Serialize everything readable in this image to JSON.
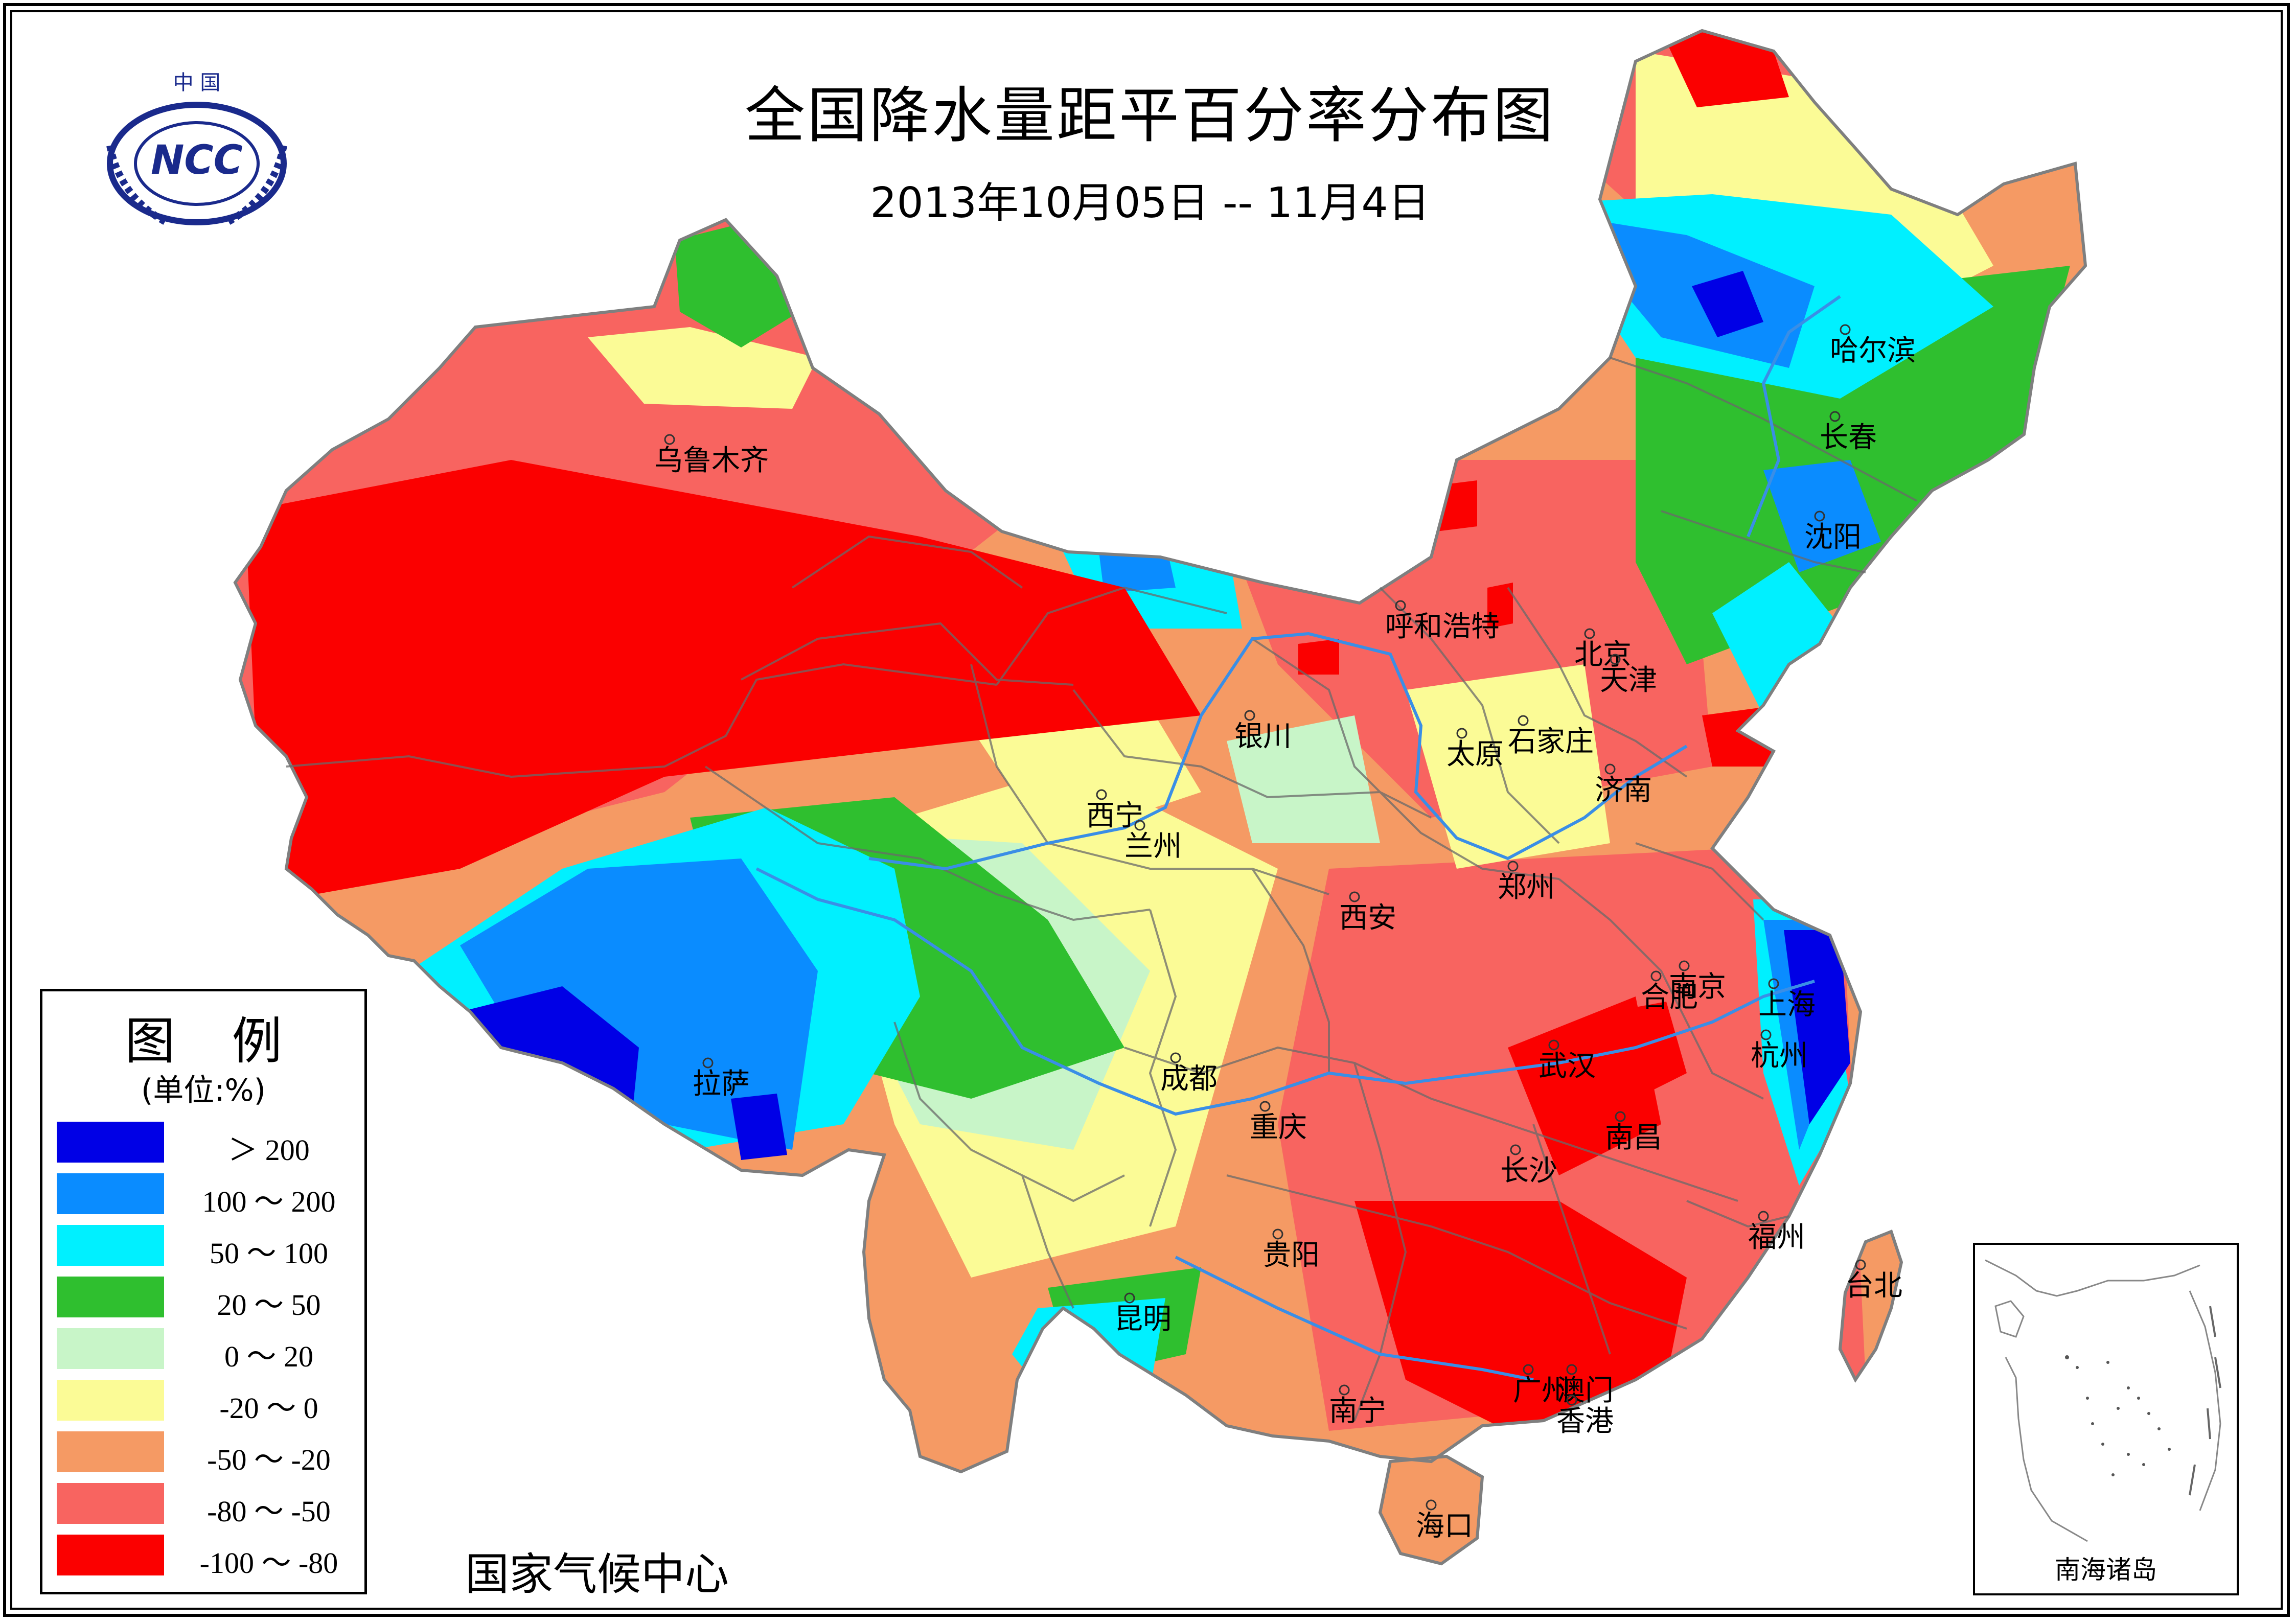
{
  "title": "全国降水量距平百分率分布图",
  "subtitle": "2013年10月05日 -- 11月4日",
  "organization": "国家气候中心",
  "logo": {
    "top_text": "中 国",
    "text": "NCC"
  },
  "legend": {
    "title": "图 例",
    "unit": "(单位:%)",
    "items": [
      {
        "label": "＞ 200",
        "color": "#0000e6"
      },
      {
        "label": "100 ～ 200",
        "color": "#0a8cff"
      },
      {
        "label": "50 ～ 100",
        "color": "#00f0ff"
      },
      {
        "label": "20 ～ 50",
        "color": "#2fbf2f"
      },
      {
        "label": "0 ～ 20",
        "color": "#c8f5c8"
      },
      {
        "label": "-20 ～ 0",
        "color": "#fbfb96"
      },
      {
        "label": "-50 ～ -20",
        "color": "#f59a64"
      },
      {
        "label": "-80 ～ -50",
        "color": "#f86460"
      },
      {
        "label": "-100 ～ -80",
        "color": "#fb0000"
      }
    ]
  },
  "cities": [
    {
      "name": "乌鲁木齐"
    },
    {
      "name": "哈尔滨"
    },
    {
      "name": "长春"
    },
    {
      "name": "沈阳"
    },
    {
      "name": "呼和浩特"
    },
    {
      "name": "北京"
    },
    {
      "name": "天津"
    },
    {
      "name": "银川"
    },
    {
      "name": "太原"
    },
    {
      "name": "石家庄"
    },
    {
      "name": "济南"
    },
    {
      "name": "西宁"
    },
    {
      "name": "兰州"
    },
    {
      "name": "郑州"
    },
    {
      "name": "西安"
    },
    {
      "name": "南京"
    },
    {
      "name": "合肥"
    },
    {
      "name": "上海"
    },
    {
      "name": "杭州"
    },
    {
      "name": "武汉"
    },
    {
      "name": "拉萨"
    },
    {
      "name": "成都"
    },
    {
      "name": "重庆"
    },
    {
      "name": "南昌"
    },
    {
      "name": "长沙"
    },
    {
      "name": "福州"
    },
    {
      "name": "台北"
    },
    {
      "name": "贵阳"
    },
    {
      "name": "昆明"
    },
    {
      "name": "南宁"
    },
    {
      "name": "广州"
    },
    {
      "name": "澳门"
    },
    {
      "name": "香港"
    },
    {
      "name": "海口"
    }
  ],
  "inset": {
    "label": "南海诸岛"
  }
}
